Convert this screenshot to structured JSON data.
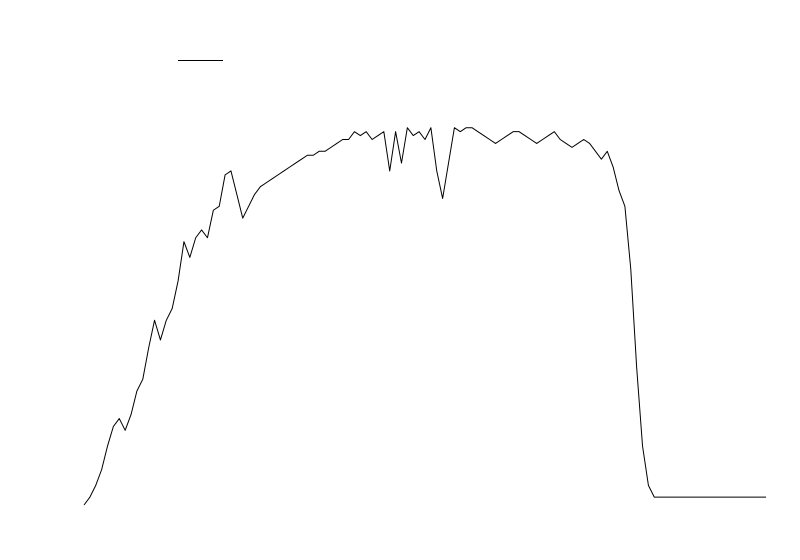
{
  "chart_data": {
    "type": "line",
    "title": "",
    "xlabel": "",
    "ylabel": "",
    "legend": {
      "placement": "top-left",
      "entries": []
    },
    "grid": false,
    "xlim": [
      0,
      116
    ],
    "ylim": [
      0,
      1
    ],
    "series": [
      {
        "color": "#000000",
        "x": [
          0,
          1,
          2,
          3,
          4,
          5,
          6,
          7,
          8,
          9,
          10,
          11,
          12,
          13,
          14,
          15,
          16,
          17,
          18,
          19,
          20,
          21,
          22,
          23,
          24,
          25,
          26,
          27,
          28,
          29,
          30,
          31,
          32,
          33,
          34,
          35,
          36,
          37,
          38,
          39,
          40,
          41,
          42,
          43,
          44,
          45,
          46,
          47,
          48,
          49,
          50,
          51,
          52,
          53,
          54,
          55,
          56,
          57,
          58,
          59,
          60,
          61,
          62,
          63,
          64,
          65,
          66,
          67,
          68,
          69,
          70,
          71,
          72,
          73,
          74,
          75,
          76,
          77,
          78,
          79,
          80,
          81,
          82,
          83,
          84,
          85,
          86,
          87,
          88,
          89,
          90,
          91,
          92,
          93,
          94,
          95,
          96,
          97,
          98,
          99,
          100,
          101,
          102,
          103,
          104,
          105,
          106,
          107,
          108,
          109,
          110,
          111,
          112,
          113,
          114,
          115,
          116
        ],
        "values": [
          0.0,
          0.02,
          0.05,
          0.09,
          0.15,
          0.2,
          0.22,
          0.19,
          0.23,
          0.29,
          0.32,
          0.4,
          0.47,
          0.42,
          0.47,
          0.5,
          0.57,
          0.67,
          0.63,
          0.68,
          0.7,
          0.68,
          0.75,
          0.76,
          0.84,
          0.85,
          0.79,
          0.73,
          0.76,
          0.79,
          0.81,
          0.82,
          0.83,
          0.84,
          0.85,
          0.86,
          0.87,
          0.88,
          0.89,
          0.89,
          0.9,
          0.9,
          0.91,
          0.92,
          0.93,
          0.93,
          0.95,
          0.94,
          0.95,
          0.93,
          0.94,
          0.95,
          0.85,
          0.95,
          0.87,
          0.96,
          0.94,
          0.95,
          0.93,
          0.96,
          0.85,
          0.78,
          0.87,
          0.96,
          0.95,
          0.96,
          0.96,
          0.95,
          0.94,
          0.93,
          0.92,
          0.93,
          0.94,
          0.95,
          0.95,
          0.94,
          0.93,
          0.92,
          0.93,
          0.94,
          0.95,
          0.93,
          0.92,
          0.91,
          0.92,
          0.93,
          0.92,
          0.9,
          0.88,
          0.9,
          0.86,
          0.8,
          0.76,
          0.6,
          0.35,
          0.15,
          0.05,
          0.02,
          0.02,
          0.02,
          0.02,
          0.02,
          0.02,
          0.02,
          0.02,
          0.02,
          0.02,
          0.02,
          0.02,
          0.02,
          0.02,
          0.02,
          0.02,
          0.02,
          0.02,
          0.02,
          0.02
        ]
      }
    ]
  }
}
